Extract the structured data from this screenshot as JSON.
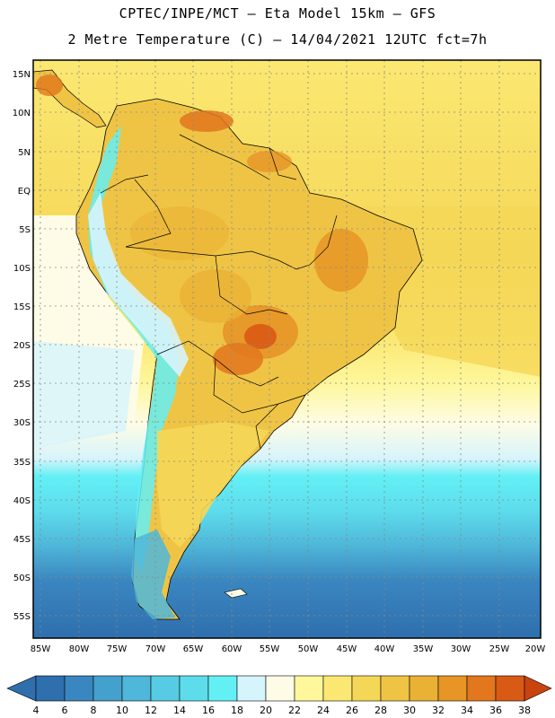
{
  "title": {
    "line1": "CPTEC/INPE/MCT –  Eta Model 15km – GFS",
    "line2": "2 Metre Temperature (C) – 14/04/2021 12UTC fct=7h"
  },
  "axes": {
    "lat_labels": [
      "15N",
      "10N",
      "5N",
      "EQ",
      "5S",
      "10S",
      "15S",
      "20S",
      "25S",
      "30S",
      "35S",
      "40S",
      "45S",
      "50S",
      "55S"
    ],
    "lon_labels": [
      "85W",
      "80W",
      "75W",
      "70W",
      "65W",
      "60W",
      "55W",
      "50W",
      "45W",
      "40W",
      "35W",
      "30W",
      "25W",
      "20W"
    ]
  },
  "colorbar": {
    "ticks": [
      "4",
      "6",
      "8",
      "10",
      "12",
      "14",
      "16",
      "18",
      "20",
      "22",
      "24",
      "26",
      "28",
      "30",
      "32",
      "34",
      "36",
      "38"
    ],
    "colors": [
      "#2f6fae",
      "#3a86c0",
      "#44a0cc",
      "#4fb7d9",
      "#56cbe3",
      "#5ddcec",
      "#63f0f5",
      "#d6f4fb",
      "#fefce6",
      "#fef79c",
      "#fbe872",
      "#f5d757",
      "#efc445",
      "#eab234",
      "#e69526",
      "#e2771d",
      "#d95a14",
      "#c9440d"
    ]
  },
  "icons": {
    "left_arrow": "colorbar-low-arrow-icon",
    "right_arrow": "colorbar-high-arrow-icon"
  }
}
